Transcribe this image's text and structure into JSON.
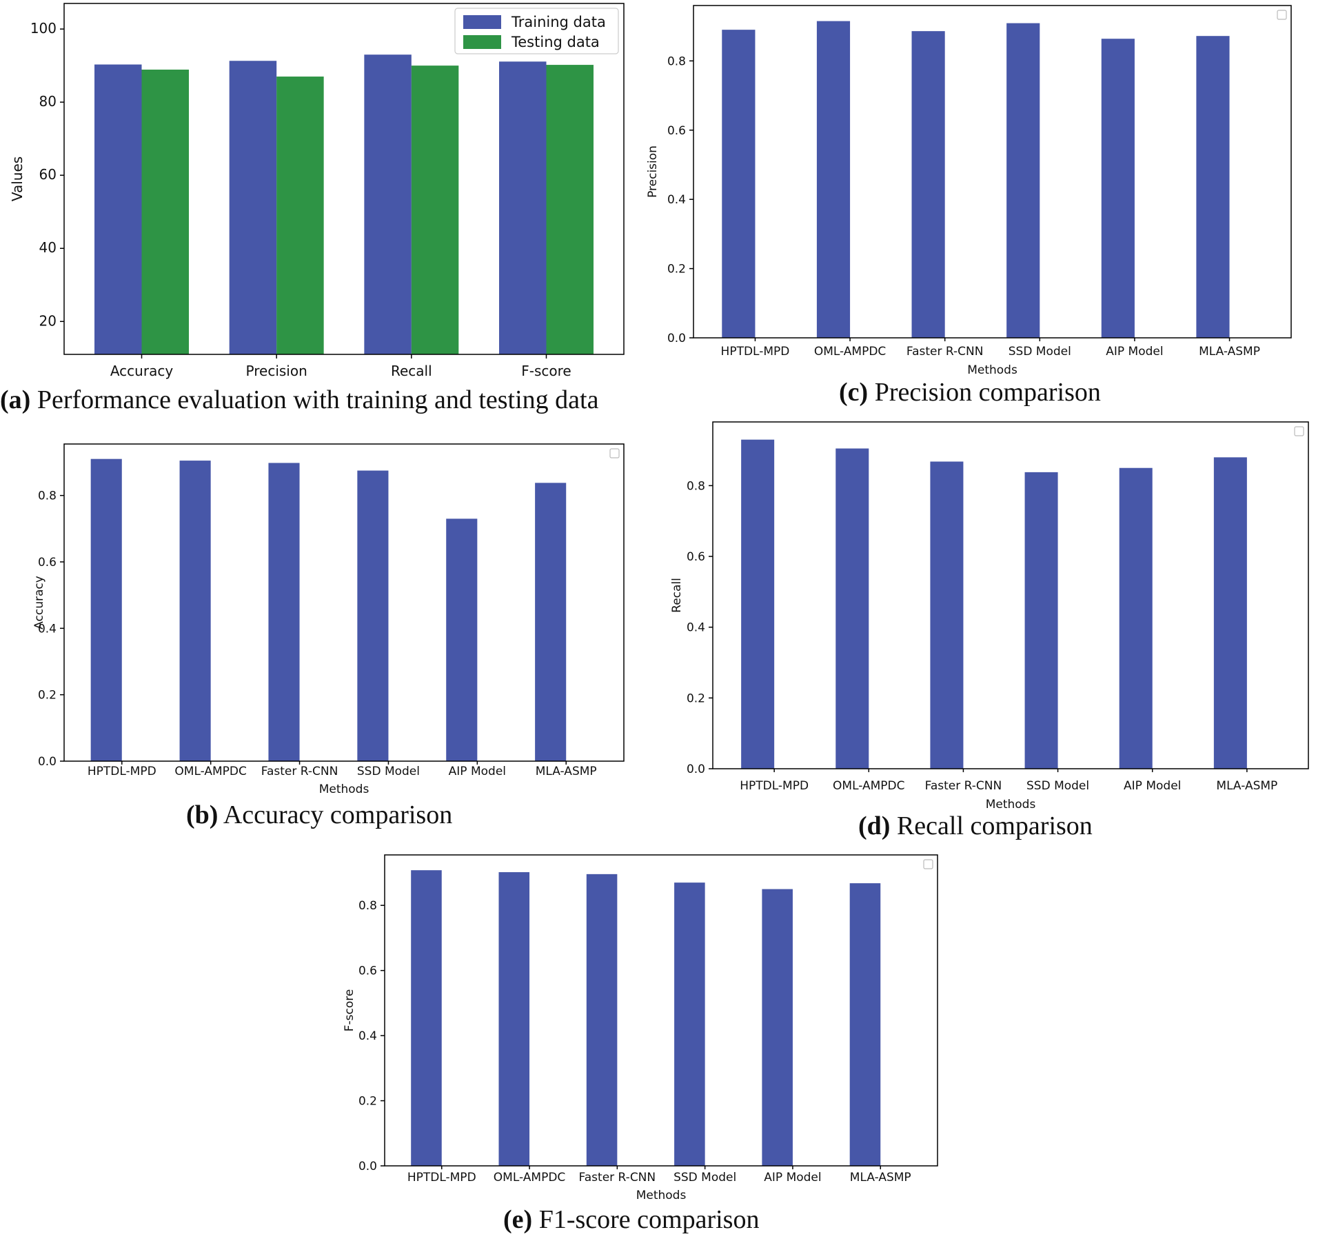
{
  "colors": {
    "training": "#4757a8",
    "testing": "#2e9445",
    "bar": "#4757a8"
  },
  "captions": {
    "a": {
      "letter": "(a)",
      "text": " Performance evaluation with training and testing data"
    },
    "b": {
      "letter": "(b)",
      "text": " Accuracy comparison"
    },
    "c": {
      "letter": "(c)",
      "text": " Precision comparison"
    },
    "d": {
      "letter": "(d)",
      "text": " Recall comparison"
    },
    "e": {
      "letter": "(e)",
      "text": " F1-score comparison"
    }
  },
  "chart_data": [
    {
      "id": "a",
      "type": "bar",
      "title": "Performance evaluation with training and testing data",
      "categories": [
        "Accuracy",
        "Precision",
        "Recall",
        "F-score"
      ],
      "series": [
        {
          "name": "Training data",
          "values": [
            90.3,
            91.3,
            93.0,
            91.1
          ]
        },
        {
          "name": "Testing data",
          "values": [
            88.9,
            87.0,
            90.0,
            90.2
          ]
        }
      ],
      "xlabel": "",
      "ylabel": "Values",
      "ylim": [
        11,
        107
      ],
      "yticks": [
        20,
        40,
        60,
        80,
        100
      ],
      "legend": "top-right"
    },
    {
      "id": "b",
      "type": "bar",
      "title": "Accuracy comparison",
      "categories": [
        "HPTDL-MPD",
        "OML-AMPDC",
        "Faster R-CNN",
        "SSD Model",
        "AIP Model",
        "MLA-ASMP"
      ],
      "values": [
        0.91,
        0.905,
        0.898,
        0.875,
        0.73,
        0.838
      ],
      "xlabel": "Methods",
      "ylabel": "Accuracy",
      "ylim": [
        0,
        0.955
      ],
      "yticks": [
        0.0,
        0.2,
        0.4,
        0.6,
        0.8
      ],
      "legend": "top-right (empty)"
    },
    {
      "id": "c",
      "type": "bar",
      "title": "Precision comparison",
      "categories": [
        "HPTDL-MPD",
        "OML-AMPDC",
        "Faster R-CNN",
        "SSD Model",
        "AIP Model",
        "MLA-ASMP"
      ],
      "values": [
        0.89,
        0.915,
        0.886,
        0.909,
        0.864,
        0.872
      ],
      "xlabel": "Methods",
      "ylabel": "Precision",
      "ylim": [
        0,
        0.96
      ],
      "yticks": [
        0.0,
        0.2,
        0.4,
        0.6,
        0.8
      ],
      "legend": "top-right (empty)"
    },
    {
      "id": "d",
      "type": "bar",
      "title": "Recall comparison",
      "categories": [
        "HPTDL-MPD",
        "OML-AMPDC",
        "Faster R-CNN",
        "SSD Model",
        "AIP Model",
        "MLA-ASMP"
      ],
      "values": [
        0.93,
        0.905,
        0.868,
        0.838,
        0.85,
        0.88
      ],
      "xlabel": "Methods",
      "ylabel": "Recall",
      "ylim": [
        0,
        0.98
      ],
      "yticks": [
        0.0,
        0.2,
        0.4,
        0.6,
        0.8
      ],
      "legend": "top-right (empty)"
    },
    {
      "id": "e",
      "type": "bar",
      "title": "F1-score comparison",
      "categories": [
        "HPTDL-MPD",
        "OML-AMPDC",
        "Faster R-CNN",
        "SSD Model",
        "AIP Model",
        "MLA-ASMP"
      ],
      "values": [
        0.908,
        0.902,
        0.896,
        0.87,
        0.85,
        0.868
      ],
      "xlabel": "Methods",
      "ylabel": "F-score",
      "ylim": [
        0,
        0.955
      ],
      "yticks": [
        0.0,
        0.2,
        0.4,
        0.6,
        0.8
      ],
      "legend": "top-right (empty)"
    }
  ]
}
